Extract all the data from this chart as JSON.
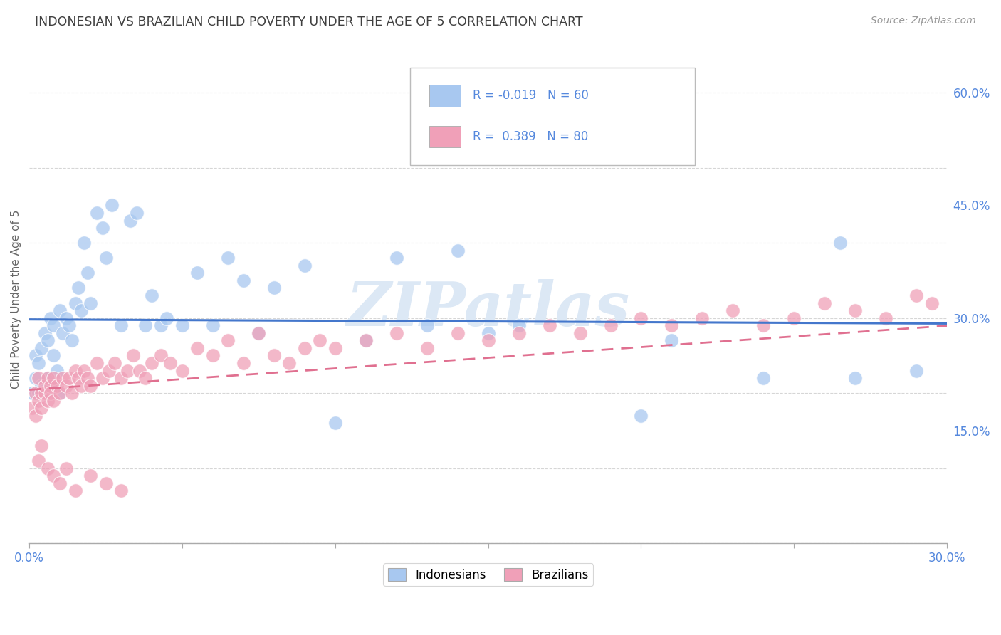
{
  "title": "INDONESIAN VS BRAZILIAN CHILD POVERTY UNDER THE AGE OF 5 CORRELATION CHART",
  "source": "Source: ZipAtlas.com",
  "ylabel": "Child Poverty Under the Age of 5",
  "xlim": [
    0.0,
    0.3
  ],
  "ylim": [
    0.0,
    0.65
  ],
  "yticks_right": [
    0.15,
    0.3,
    0.45,
    0.6
  ],
  "indonesian_color": "#a8c8f0",
  "brazilian_color": "#f0a0b8",
  "indonesian_line_color": "#4477cc",
  "brazilian_line_color": "#e07090",
  "indonesian_R": -0.019,
  "indonesian_N": 60,
  "brazilian_R": 0.389,
  "brazilian_N": 80,
  "watermark": "ZIPatlas",
  "watermark_color": "#dce8f5",
  "background_color": "#ffffff",
  "grid_color": "#cccccc",
  "title_color": "#404040",
  "axis_color": "#5588dd",
  "legend_bg": "#ffffff",
  "legend_border": "#bbbbbb",
  "indo_x": [
    0.001,
    0.002,
    0.002,
    0.003,
    0.003,
    0.004,
    0.004,
    0.005,
    0.005,
    0.006,
    0.006,
    0.007,
    0.007,
    0.008,
    0.008,
    0.009,
    0.01,
    0.01,
    0.011,
    0.012,
    0.013,
    0.014,
    0.015,
    0.016,
    0.017,
    0.018,
    0.019,
    0.02,
    0.022,
    0.024,
    0.025,
    0.027,
    0.03,
    0.033,
    0.035,
    0.038,
    0.04,
    0.043,
    0.045,
    0.05,
    0.055,
    0.06,
    0.065,
    0.07,
    0.075,
    0.08,
    0.09,
    0.1,
    0.11,
    0.12,
    0.13,
    0.14,
    0.15,
    0.16,
    0.2,
    0.21,
    0.24,
    0.265,
    0.27,
    0.29
  ],
  "indo_y": [
    0.2,
    0.22,
    0.25,
    0.2,
    0.24,
    0.21,
    0.26,
    0.2,
    0.28,
    0.22,
    0.27,
    0.3,
    0.21,
    0.29,
    0.25,
    0.23,
    0.2,
    0.31,
    0.28,
    0.3,
    0.29,
    0.27,
    0.32,
    0.34,
    0.31,
    0.4,
    0.36,
    0.32,
    0.44,
    0.42,
    0.38,
    0.45,
    0.29,
    0.43,
    0.44,
    0.29,
    0.33,
    0.29,
    0.3,
    0.29,
    0.36,
    0.29,
    0.38,
    0.35,
    0.28,
    0.34,
    0.37,
    0.16,
    0.27,
    0.38,
    0.29,
    0.39,
    0.28,
    0.29,
    0.17,
    0.27,
    0.22,
    0.4,
    0.22,
    0.23
  ],
  "braz_x": [
    0.001,
    0.002,
    0.002,
    0.003,
    0.003,
    0.004,
    0.004,
    0.005,
    0.005,
    0.006,
    0.006,
    0.007,
    0.007,
    0.008,
    0.008,
    0.009,
    0.01,
    0.011,
    0.012,
    0.013,
    0.014,
    0.015,
    0.016,
    0.017,
    0.018,
    0.019,
    0.02,
    0.022,
    0.024,
    0.026,
    0.028,
    0.03,
    0.032,
    0.034,
    0.036,
    0.038,
    0.04,
    0.043,
    0.046,
    0.05,
    0.055,
    0.06,
    0.065,
    0.07,
    0.075,
    0.08,
    0.085,
    0.09,
    0.095,
    0.1,
    0.11,
    0.12,
    0.13,
    0.14,
    0.15,
    0.16,
    0.17,
    0.18,
    0.19,
    0.2,
    0.21,
    0.22,
    0.23,
    0.24,
    0.25,
    0.26,
    0.27,
    0.28,
    0.29,
    0.295,
    0.003,
    0.004,
    0.006,
    0.008,
    0.01,
    0.012,
    0.015,
    0.02,
    0.025,
    0.03
  ],
  "braz_y": [
    0.18,
    0.2,
    0.17,
    0.19,
    0.22,
    0.2,
    0.18,
    0.2,
    0.21,
    0.19,
    0.22,
    0.21,
    0.2,
    0.19,
    0.22,
    0.21,
    0.2,
    0.22,
    0.21,
    0.22,
    0.2,
    0.23,
    0.22,
    0.21,
    0.23,
    0.22,
    0.21,
    0.24,
    0.22,
    0.23,
    0.24,
    0.22,
    0.23,
    0.25,
    0.23,
    0.22,
    0.24,
    0.25,
    0.24,
    0.23,
    0.26,
    0.25,
    0.27,
    0.24,
    0.28,
    0.25,
    0.24,
    0.26,
    0.27,
    0.26,
    0.27,
    0.28,
    0.26,
    0.28,
    0.27,
    0.28,
    0.29,
    0.28,
    0.29,
    0.3,
    0.29,
    0.3,
    0.31,
    0.29,
    0.3,
    0.32,
    0.31,
    0.3,
    0.33,
    0.32,
    0.11,
    0.13,
    0.1,
    0.09,
    0.08,
    0.1,
    0.07,
    0.09,
    0.08,
    0.07
  ]
}
